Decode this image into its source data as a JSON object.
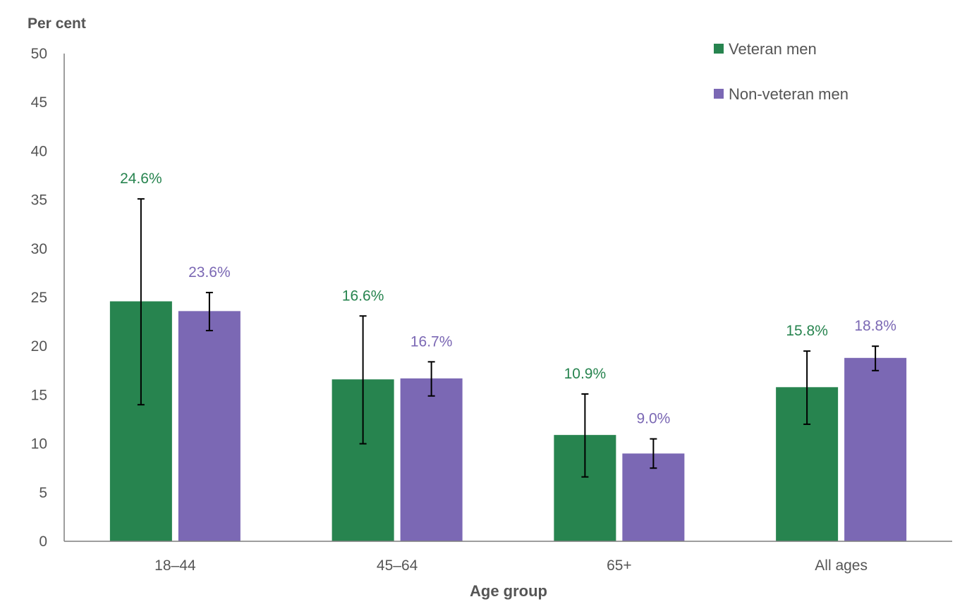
{
  "chart_data": {
    "type": "bar",
    "ylabel": "Per cent",
    "xlabel": "Age group",
    "ylim": [
      0,
      50
    ],
    "yticks": [
      0,
      5,
      10,
      15,
      20,
      25,
      30,
      35,
      40,
      45,
      50
    ],
    "grid": false,
    "legend_position": "top-right",
    "categories": [
      "18–44",
      "45–64",
      "65+",
      "All ages"
    ],
    "series": [
      {
        "name": "Veteran men",
        "color": "#27844f",
        "values": [
          24.6,
          16.6,
          10.9,
          15.8
        ],
        "labels": [
          "24.6%",
          "16.6%",
          "10.9%",
          "15.8%"
        ],
        "error_low": [
          14.0,
          10.0,
          6.6,
          12.0
        ],
        "error_high": [
          35.1,
          23.1,
          15.1,
          19.5
        ]
      },
      {
        "name": "Non-veteran men",
        "color": "#7b68b4",
        "values": [
          23.6,
          16.7,
          9.0,
          18.8
        ],
        "labels": [
          "23.6%",
          "16.7%",
          "9.0%",
          "18.8%"
        ],
        "error_low": [
          21.6,
          14.9,
          7.5,
          17.5
        ],
        "error_high": [
          25.5,
          18.4,
          10.5,
          20.0
        ]
      }
    ]
  }
}
